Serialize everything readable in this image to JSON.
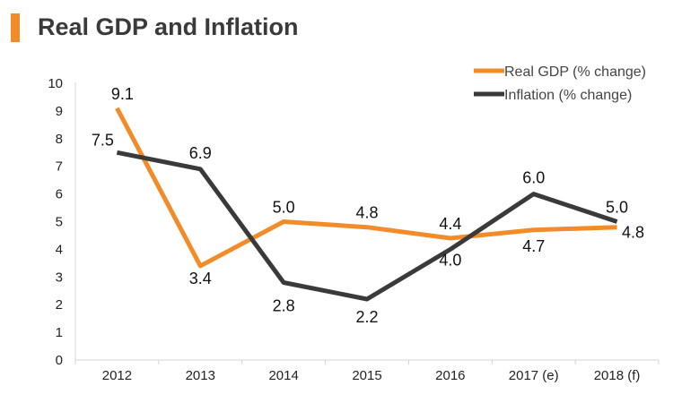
{
  "header": {
    "title": "Real GDP and Inflation",
    "accent_color": "#f28c28"
  },
  "chart_data": {
    "type": "line",
    "title": "Real GDP and Inflation",
    "xlabel": "",
    "ylabel": "",
    "categories": [
      "2012",
      "2013",
      "2014",
      "2015",
      "2016",
      "2017 (e)",
      "2018 (f)"
    ],
    "ylim": [
      0,
      10
    ],
    "yticks": [
      "0",
      "1",
      "2",
      "3",
      "4",
      "5",
      "6",
      "7",
      "8",
      "9",
      "10"
    ],
    "grid": false,
    "legend_position": "top-right",
    "series": [
      {
        "name": "Real GDP (% change)",
        "color": "#f28c28",
        "values": [
          9.1,
          3.4,
          5.0,
          4.8,
          4.4,
          4.7,
          4.8
        ],
        "labels": [
          "9.1",
          "3.4",
          "5.0",
          "4.8",
          "4.4",
          "4.7",
          "4.8"
        ]
      },
      {
        "name": "Inflation (% change)",
        "color": "#3a3a3a",
        "values": [
          7.5,
          6.9,
          2.8,
          2.2,
          4.0,
          6.0,
          5.0
        ],
        "labels": [
          "7.5",
          "6.9",
          "2.8",
          "2.2",
          "4.0",
          "6.0",
          "5.0"
        ]
      }
    ]
  }
}
